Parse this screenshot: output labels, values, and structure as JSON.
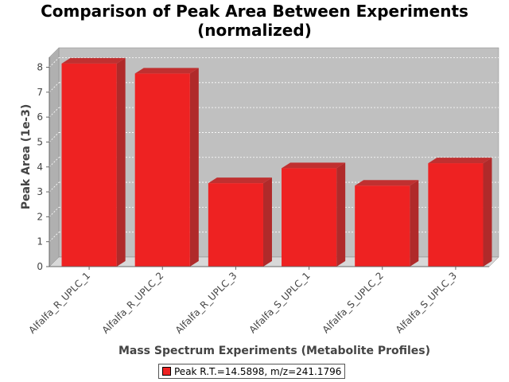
{
  "chart_data": {
    "type": "bar",
    "title_line1": "Comparison of Peak Area Between Experiments",
    "title_line2": "(normalized)",
    "xlabel": "Mass Spectrum Experiments (Metabolite Profiles)",
    "ylabel": "Peak Area (1e-3)",
    "categories": [
      "Alfalfa_R_UPLC_1",
      "Alfalfa_R_UPLC_2",
      "Alfalfa_R_UPLC_3",
      "Alfalfa_S_UPLC_1",
      "Alfalfa_S_UPLC_2",
      "Alfalfa_S_UPLC_3"
    ],
    "series": [
      {
        "name": "Peak R.T.=14.5898, m/z=241.1796",
        "values": [
          8.15,
          7.75,
          3.35,
          3.95,
          3.25,
          4.15
        ],
        "color": "#ee2222"
      }
    ],
    "ylim": [
      0,
      8.4
    ],
    "yticks": [
      "0",
      "1",
      "2",
      "3",
      "4",
      "5",
      "6",
      "7",
      "8"
    ],
    "grid": true,
    "legend_position": "bottom",
    "plot_background": "#c0c0c0"
  }
}
